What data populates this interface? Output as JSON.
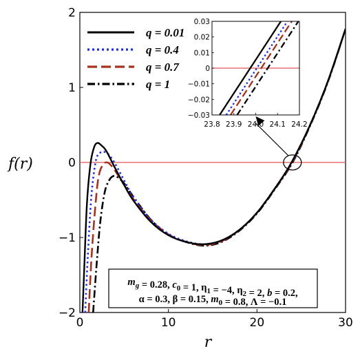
{
  "chart_data": {
    "type": "line",
    "xlabel": "r",
    "ylabel": "f(r)",
    "xlim": [
      0,
      30
    ],
    "ylim": [
      -2,
      2
    ],
    "xticks": [
      0,
      10,
      20,
      30
    ],
    "yticks": [
      -2,
      -1,
      0,
      1,
      2
    ],
    "grid": false,
    "legend_position": "top-left",
    "reference_line": {
      "y": 0,
      "color": "#e05555"
    },
    "series": [
      {
        "name": "q = 0.01",
        "color": "#000000",
        "dash": "solid",
        "x": [
          0.3,
          0.5,
          0.8,
          1.2,
          1.6,
          2.0,
          2.5,
          3.0,
          4,
          5,
          6,
          8,
          10,
          12,
          14,
          16,
          18,
          20,
          22,
          23.9,
          26,
          28,
          30
        ],
        "y": [
          -2.0,
          -1.4,
          -0.55,
          -0.02,
          0.2,
          0.26,
          0.22,
          0.15,
          -0.08,
          -0.3,
          -0.5,
          -0.79,
          -0.97,
          -1.06,
          -1.09,
          -1.04,
          -0.9,
          -0.67,
          -0.35,
          0.0,
          0.5,
          1.08,
          1.78
        ]
      },
      {
        "name": "q = 0.4",
        "color": "#1f2ee0",
        "dash": "dot",
        "x": [
          0.6,
          0.9,
          1.3,
          1.8,
          2.3,
          2.8,
          3.3,
          4,
          5,
          6,
          8,
          10,
          12,
          14,
          16,
          18,
          20,
          22,
          23.93,
          26,
          28,
          30
        ],
        "y": [
          -2.0,
          -1.25,
          -0.45,
          0.02,
          0.13,
          0.14,
          0.1,
          -0.02,
          -0.24,
          -0.45,
          -0.76,
          -0.95,
          -1.05,
          -1.09,
          -1.04,
          -0.9,
          -0.67,
          -0.35,
          0.0,
          0.5,
          1.08,
          1.78
        ]
      },
      {
        "name": "q = 0.7",
        "color": "#a5321d",
        "dash": "dash",
        "x": [
          1.0,
          1.3,
          1.7,
          2.1,
          2.6,
          3.1,
          3.6,
          4.2,
          5,
          6,
          8,
          10,
          12,
          14,
          16,
          18,
          20,
          22,
          23.97,
          26,
          28,
          30
        ],
        "y": [
          -2.0,
          -1.3,
          -0.65,
          -0.2,
          -0.03,
          0.0,
          -0.05,
          -0.15,
          -0.3,
          -0.48,
          -0.77,
          -0.96,
          -1.06,
          -1.1,
          -1.05,
          -0.9,
          -0.67,
          -0.35,
          0.0,
          0.5,
          1.08,
          1.78
        ]
      },
      {
        "name": "q = 1",
        "color": "#000000",
        "dash": "dashdot",
        "x": [
          1.5,
          1.9,
          2.3,
          2.8,
          3.3,
          3.8,
          4.3,
          5,
          6,
          8,
          10,
          12,
          14,
          16,
          18,
          20,
          22,
          24.02,
          26,
          28,
          30
        ],
        "y": [
          -2.0,
          -1.35,
          -0.8,
          -0.4,
          -0.24,
          -0.18,
          -0.2,
          -0.28,
          -0.45,
          -0.76,
          -0.96,
          -1.06,
          -1.11,
          -1.06,
          -0.91,
          -0.68,
          -0.36,
          0.0,
          0.49,
          1.07,
          1.78
        ]
      }
    ],
    "inset": {
      "xlim": [
        23.8,
        24.2
      ],
      "ylim": [
        -0.03,
        0.03
      ],
      "xticks": [
        "23.8",
        "23.9",
        "24.0",
        "24.1",
        "24.2"
      ],
      "yticks": [
        "-0.03",
        "-0.02",
        "-0.01",
        "0",
        "0.01",
        "0.02",
        "0.03"
      ],
      "lines": [
        {
          "series": "q = 0.01",
          "x1": 23.835,
          "y1": -0.03,
          "x2": 24.115,
          "y2": 0.03
        },
        {
          "series": "q = 0.4",
          "x1": 23.865,
          "y1": -0.03,
          "x2": 24.145,
          "y2": 0.03
        },
        {
          "series": "q = 0.7",
          "x1": 23.885,
          "y1": -0.03,
          "x2": 24.165,
          "y2": 0.03
        },
        {
          "series": "q = 1",
          "x1": 23.915,
          "y1": -0.03,
          "x2": 24.195,
          "y2": 0.03
        }
      ],
      "zoom_center": {
        "x": 24.0,
        "y": 0.0
      }
    },
    "parameters": {
      "line1": [
        {
          "t": "m",
          "i": true
        },
        {
          "t": "g",
          "sub": true,
          "i": true
        },
        {
          "t": " = 0.28, "
        },
        {
          "t": "c",
          "i": true
        },
        {
          "t": "0",
          "sub": true
        },
        {
          "t": " = 1, "
        },
        {
          "t": "η"
        },
        {
          "t": "1",
          "sub": true
        },
        {
          "t": " = −4, "
        },
        {
          "t": "η"
        },
        {
          "t": "2",
          "sub": true
        },
        {
          "t": " = 2, "
        },
        {
          "t": "b",
          "i": true
        },
        {
          "t": " = 0.2,"
        }
      ],
      "line2": [
        {
          "t": "α = 0.3, β = 0.15, "
        },
        {
          "t": "m",
          "i": true
        },
        {
          "t": "0",
          "sub": true
        },
        {
          "t": " = 0.8, Λ = −0.1"
        }
      ]
    }
  }
}
